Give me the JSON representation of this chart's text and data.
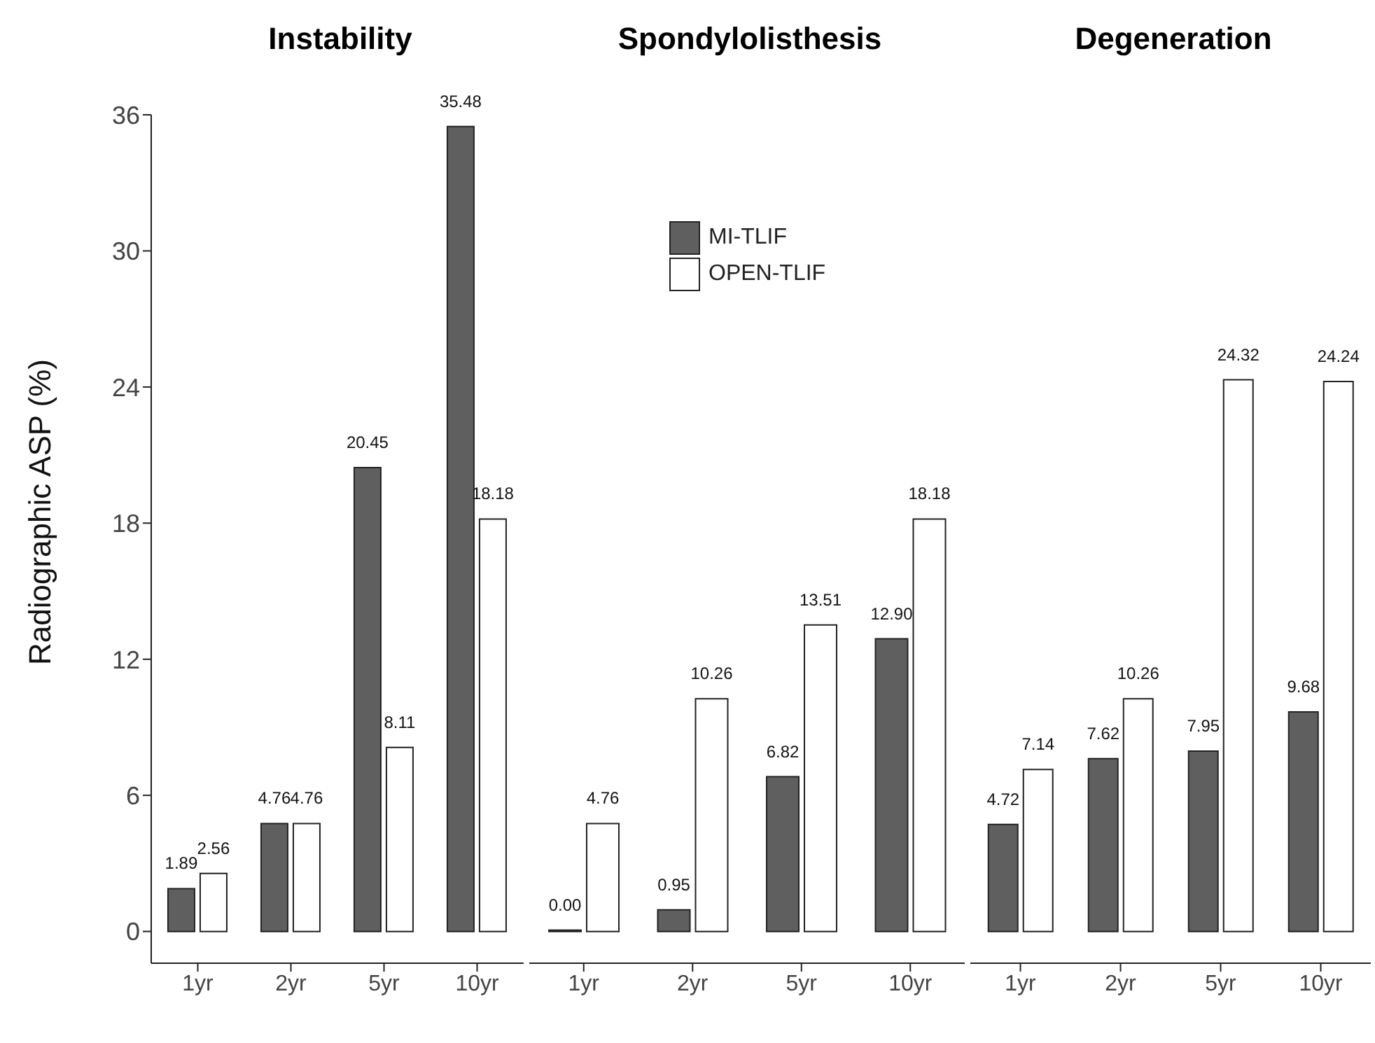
{
  "chart_data": [
    {
      "type": "bar",
      "title": "Instability",
      "ylabel": "Radiographic ASP (%)",
      "categories": [
        "1yr",
        "2yr",
        "5yr",
        "10yr"
      ],
      "ylim": [
        -1.4,
        36
      ],
      "yticks": [
        0,
        6,
        12,
        18,
        24,
        30,
        36
      ],
      "series": [
        {
          "color": "#5f5f5f",
          "values": [
            1.89,
            4.76,
            20.45,
            35.48
          ],
          "value_labels": [
            "1.89",
            "4.76",
            "20.45",
            "35.48"
          ]
        },
        {
          "color": "#ffffff",
          "values": [
            2.56,
            4.76,
            8.11,
            18.18
          ],
          "value_labels": [
            "2.56",
            "4.76",
            "8.11",
            "18.18"
          ]
        }
      ]
    },
    {
      "type": "bar",
      "title": "Spondylolisthesis",
      "categories": [
        "1yr",
        "2yr",
        "5yr",
        "10yr"
      ],
      "ylim": [
        -1.4,
        36
      ],
      "yticks": [
        0,
        6,
        12,
        18,
        24,
        30,
        36
      ],
      "tick_labels": "x",
      "legend": "top",
      "series": [
        {
          "name": "MI-TLIF",
          "color": "#5f5f5f",
          "values": [
            0.0,
            0.95,
            6.82,
            12.9
          ],
          "value_labels": [
            "0.00",
            "0.95",
            "6.82",
            "12.90"
          ]
        },
        {
          "name": "OPEN-TLIF",
          "color": "#ffffff",
          "values": [
            4.76,
            10.26,
            13.51,
            18.18
          ],
          "value_labels": [
            "4.76",
            "10.26",
            "13.51",
            "18.18"
          ]
        }
      ]
    },
    {
      "type": "bar",
      "title": "Degeneration",
      "categories": [
        "1yr",
        "2yr",
        "5yr",
        "10yr"
      ],
      "ylim": [
        -1.4,
        36
      ],
      "yticks": [
        0,
        6,
        12,
        18,
        24,
        30,
        36
      ],
      "tick_labels": "x",
      "series": [
        {
          "color": "#5f5f5f",
          "values": [
            4.72,
            7.62,
            7.95,
            9.68
          ],
          "value_labels": [
            "4.72",
            "7.62",
            "7.95",
            "9.68"
          ]
        },
        {
          "color": "#ffffff",
          "values": [
            7.14,
            10.26,
            24.32,
            24.24
          ],
          "value_labels": [
            "7.14",
            "10.26",
            "24.32",
            "24.24"
          ]
        }
      ]
    }
  ]
}
